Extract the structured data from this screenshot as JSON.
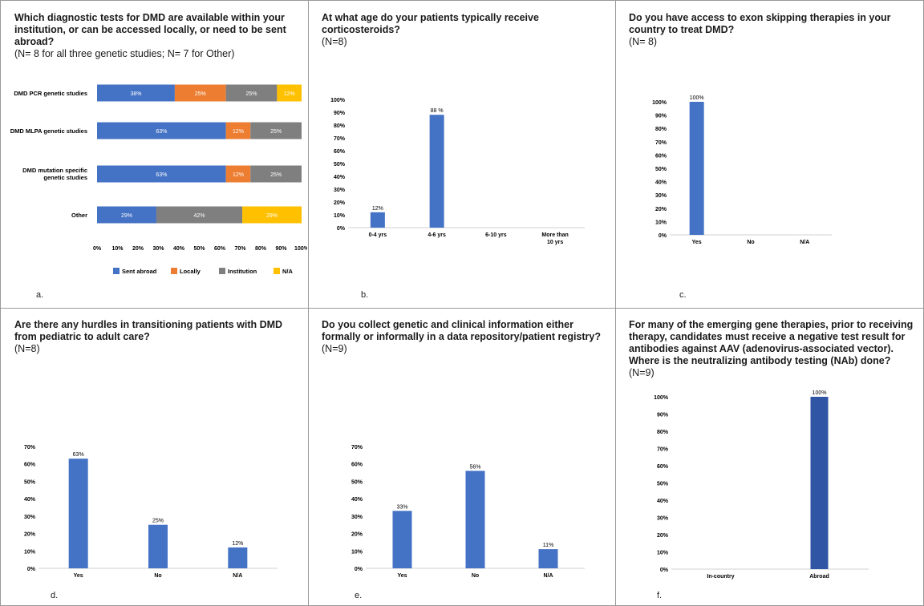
{
  "panels": [
    {
      "id": "a",
      "title": "Which diagnostic tests for DMD are available within your institution, or can be accessed locally, or need to be sent abroad?",
      "subtitle": "(N= 8 for all three genetic studies; N= 7 for Other)",
      "label": "a."
    },
    {
      "id": "b",
      "title": "At what age do your patients typically receive corticosteroids?",
      "subtitle": "(N=8)",
      "label": "b."
    },
    {
      "id": "c",
      "title": "Do you have access to exon skipping therapies in your country to treat DMD?",
      "subtitle": "(N= 8)",
      "label": "c."
    },
    {
      "id": "d",
      "title": "Are there any hurdles in transitioning patients with DMD from pediatric to adult care?",
      "subtitle": "(N=8)",
      "label": "d."
    },
    {
      "id": "e",
      "title": "Do you collect genetic and clinical information either formally or informally in a data repository/patient registry?",
      "subtitle": "(N=9)",
      "label": "e."
    },
    {
      "id": "f",
      "title": "For many of the emerging gene therapies, prior to receiving therapy, candidates must receive a negative test result for antibodies against AAV  (adenovirus-associated vector). Where is the neutralizing antibody testing (NAb) done?",
      "subtitle": "(N=9)",
      "label": "f."
    }
  ],
  "chart_data": [
    {
      "type": "bar",
      "orientation": "horizontal",
      "stacked": true,
      "categories": [
        "DMD PCR genetic studies",
        "DMD MLPA genetic studies",
        "DMD mutation specific genetic studies",
        "Other"
      ],
      "series": [
        {
          "name": "Sent abroad",
          "color": "#4472c4",
          "values": [
            38,
            63,
            63,
            29
          ],
          "labels": [
            "38%",
            "63%",
            "63%",
            "29%"
          ]
        },
        {
          "name": "Locally",
          "color": "#ed7d31",
          "values": [
            25,
            12,
            12,
            0
          ],
          "labels": [
            "25%",
            "12%",
            "12%",
            ""
          ]
        },
        {
          "name": "Institution",
          "color": "#7f7f7f",
          "values": [
            25,
            25,
            25,
            42
          ],
          "labels": [
            "25%",
            "25%",
            "25%",
            "42%"
          ]
        },
        {
          "name": "N/A",
          "color": "#ffc000",
          "values": [
            12,
            0,
            0,
            29
          ],
          "labels": [
            "12%",
            "",
            "",
            "29%"
          ]
        }
      ],
      "xlim": [
        0,
        100
      ],
      "xticks": [
        "0%",
        "10%",
        "20%",
        "30%",
        "40%",
        "50%",
        "60%",
        "70%",
        "80%",
        "90%",
        "100%"
      ],
      "legend_position": "bottom"
    },
    {
      "type": "bar",
      "categories": [
        "0-4 yrs",
        "4-6 yrs",
        "6-10 yrs",
        "More than 10 yrs"
      ],
      "values": [
        12,
        88,
        0,
        0
      ],
      "labels": [
        "12%",
        "88 %",
        "",
        ""
      ],
      "color": "#4472c4",
      "ylim": [
        0,
        100
      ],
      "yticks": [
        "0%",
        "10%",
        "20%",
        "30%",
        "40%",
        "50%",
        "60%",
        "70%",
        "80%",
        "90%",
        "100%"
      ]
    },
    {
      "type": "bar",
      "categories": [
        "Yes",
        "No",
        "N/A"
      ],
      "values": [
        100,
        0,
        0
      ],
      "labels": [
        "100%",
        "",
        ""
      ],
      "color": "#4472c4",
      "ylim": [
        0,
        100
      ],
      "yticks": [
        "0%",
        "10%",
        "20%",
        "30%",
        "40%",
        "50%",
        "60%",
        "70%",
        "80%",
        "90%",
        "100%"
      ]
    },
    {
      "type": "bar",
      "categories": [
        "Yes",
        "No",
        "N/A"
      ],
      "values": [
        63,
        25,
        12
      ],
      "labels": [
        "63%",
        "25%",
        "12%"
      ],
      "color": "#4472c4",
      "ylim": [
        0,
        70
      ],
      "yticks": [
        "0%",
        "10%",
        "20%",
        "30%",
        "40%",
        "50%",
        "60%",
        "70%"
      ]
    },
    {
      "type": "bar",
      "categories": [
        "Yes",
        "No",
        "N/A"
      ],
      "values": [
        33,
        56,
        11
      ],
      "labels": [
        "33%",
        "56%",
        "11%"
      ],
      "color": "#4472c4",
      "ylim": [
        0,
        70
      ],
      "yticks": [
        "0%",
        "10%",
        "20%",
        "30%",
        "40%",
        "50%",
        "60%",
        "70%"
      ]
    },
    {
      "type": "bar",
      "categories": [
        "In-country",
        "Abroad"
      ],
      "values": [
        0,
        100
      ],
      "labels": [
        "",
        "100%"
      ],
      "color": "#2f55a4",
      "ylim": [
        0,
        100
      ],
      "yticks": [
        "0%",
        "10%",
        "20%",
        "30%",
        "40%",
        "50%",
        "60%",
        "70%",
        "80%",
        "90%",
        "100%"
      ]
    }
  ]
}
